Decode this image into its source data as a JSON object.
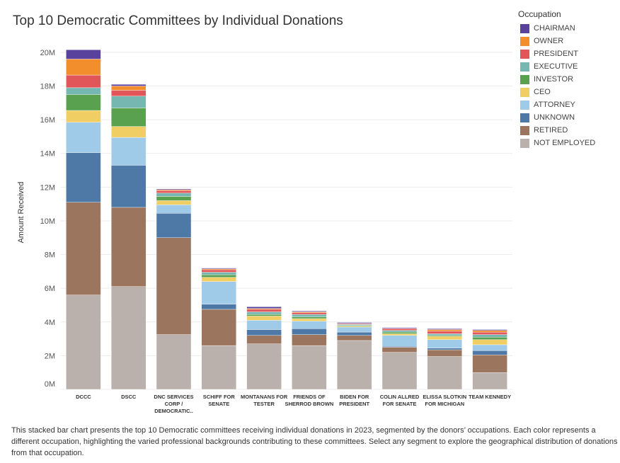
{
  "chart_data": {
    "type": "bar",
    "stacked": true,
    "title": "Top 10 Democratic Committees by Individual Donations",
    "ylabel": "Amount Received",
    "xlabel": "",
    "ylim": [
      0,
      20500000
    ],
    "yticks": [
      0,
      2000000,
      4000000,
      6000000,
      8000000,
      10000000,
      12000000,
      14000000,
      16000000,
      18000000,
      20000000
    ],
    "ytick_labels": [
      "0M",
      "2M",
      "4M",
      "6M",
      "8M",
      "10M",
      "12M",
      "14M",
      "16M",
      "18M",
      "20M"
    ],
    "grid": true,
    "legend_title": "Occupation",
    "legend_position": "right",
    "categories": [
      [
        "DCCC"
      ],
      [
        "DSCC"
      ],
      [
        "DNC SERVICES",
        "CORP /",
        "DEMOCRATIC.."
      ],
      [
        "SCHIFF FOR",
        "SENATE"
      ],
      [
        "MONTANANS FOR",
        "TESTER"
      ],
      [
        "FRIENDS OF",
        "SHERROD BROWN"
      ],
      [
        "BIDEN FOR",
        "PRESIDENT"
      ],
      [
        "COLIN ALLRED",
        "FOR SENATE"
      ],
      [
        "ELISSA SLOTKIN",
        "FOR MICHIGAN"
      ],
      [
        "TEAM KENNEDY"
      ]
    ],
    "series": [
      {
        "name": "NOT EMPLOYED",
        "color": "#bab0ac",
        "values": [
          5600000,
          6100000,
          3250000,
          2600000,
          2700000,
          2600000,
          2900000,
          2200000,
          1950000,
          1000000
        ]
      },
      {
        "name": "RETIRED",
        "color": "#9c755f",
        "values": [
          5500000,
          4700000,
          5750000,
          2150000,
          500000,
          650000,
          300000,
          300000,
          400000,
          1050000
        ]
      },
      {
        "name": "UNKNOWN",
        "color": "#4e79a7",
        "values": [
          2950000,
          2500000,
          1450000,
          300000,
          350000,
          350000,
          200000,
          50000,
          100000,
          250000
        ]
      },
      {
        "name": "ATTORNEY",
        "color": "#a0cbe8",
        "values": [
          1800000,
          1650000,
          500000,
          1350000,
          550000,
          450000,
          300000,
          650000,
          500000,
          350000
        ]
      },
      {
        "name": "CEO",
        "color": "#f1ce63",
        "values": [
          700000,
          650000,
          250000,
          250000,
          250000,
          150000,
          50000,
          100000,
          200000,
          300000
        ]
      },
      {
        "name": "INVESTOR",
        "color": "#59a14f",
        "values": [
          950000,
          1100000,
          250000,
          150000,
          100000,
          100000,
          50000,
          100000,
          50000,
          150000
        ]
      },
      {
        "name": "EXECUTIVE",
        "color": "#76b7b2",
        "values": [
          400000,
          700000,
          200000,
          150000,
          150000,
          150000,
          50000,
          100000,
          100000,
          150000
        ]
      },
      {
        "name": "PRESIDENT",
        "color": "#e15759",
        "values": [
          750000,
          350000,
          150000,
          150000,
          150000,
          100000,
          50000,
          100000,
          150000,
          150000
        ]
      },
      {
        "name": "OWNER",
        "color": "#f28e2b",
        "values": [
          950000,
          250000,
          50000,
          50000,
          50000,
          50000,
          20000,
          20000,
          100000,
          100000
        ]
      },
      {
        "name": "CHAIRMAN",
        "color": "#59429b",
        "values": [
          550000,
          100000,
          50000,
          50000,
          100000,
          50000,
          50000,
          50000,
          50000,
          50000
        ]
      }
    ]
  },
  "legend_order": [
    "CHAIRMAN",
    "OWNER",
    "PRESIDENT",
    "EXECUTIVE",
    "INVESTOR",
    "CEO",
    "ATTORNEY",
    "UNKNOWN",
    "RETIRED",
    "NOT EMPLOYED"
  ],
  "caption": "This stacked bar chart presents the top 10 Democratic committees receiving individual donations in 2023, segmented by the donors’ occupations. Each color represents a different occupation, highlighting the varied professional backgrounds contributing to these committees. Select any segment to explore the geographical distribution of donations from that occupation."
}
